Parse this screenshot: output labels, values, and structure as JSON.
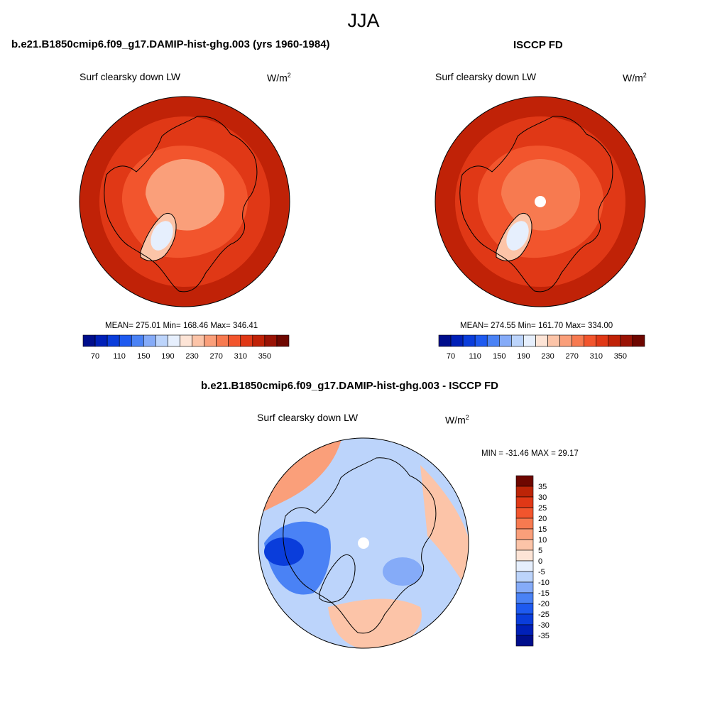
{
  "title": "JJA",
  "panels": [
    {
      "title": "b.e21.B1850cmip6.f09_g17.DAMIP-hist-ghg.003 (yrs 1960-1984)",
      "variable": "Surf clearsky down LW",
      "units_base": "W/m",
      "units_exp": "2",
      "stats": "MEAN= 275.01  Min= 168.46  Max= 346.41",
      "regions": [
        {
          "name": "lower-latitude ring",
          "value": 320
        },
        {
          "name": "middle ring",
          "value": 300
        },
        {
          "name": "inner ring",
          "value": 270
        },
        {
          "name": "arctic ocean core",
          "value": 240
        },
        {
          "name": "greenland outer",
          "value": 210
        },
        {
          "name": "greenland interior",
          "value": 170
        }
      ]
    },
    {
      "title": "ISCCP FD",
      "variable": "Surf clearsky down LW",
      "units_base": "W/m",
      "units_exp": "2",
      "stats": "MEAN= 274.55  Min= 161.70  Max= 334.00",
      "regions": [
        {
          "name": "lower-latitude ring",
          "value": 320
        },
        {
          "name": "middle ring",
          "value": 300
        },
        {
          "name": "inner ring",
          "value": 270
        },
        {
          "name": "arctic ocean core",
          "value": 250
        },
        {
          "name": "greenland outer",
          "value": 210
        },
        {
          "name": "greenland interior",
          "value": 170
        }
      ]
    },
    {
      "title": "b.e21.B1850cmip6.f09_g17.DAMIP-hist-ghg.003 - ISCCP FD",
      "variable": "Surf clearsky down LW",
      "units_base": "W/m",
      "units_exp": "2",
      "stats": "MIN = -31.46 MAX =  29.17",
      "regions": [
        {
          "name": "background",
          "value": -5
        },
        {
          "name": "north atlantic",
          "value": 12
        },
        {
          "name": "east pacific",
          "value": 10
        },
        {
          "name": "north america",
          "value": -15
        },
        {
          "name": "hudson region",
          "value": -25
        },
        {
          "name": "europe",
          "value": 8
        },
        {
          "name": "siberia",
          "value": -10
        }
      ]
    }
  ],
  "colorbar_abs": {
    "labels": [
      "70",
      "110",
      "150",
      "190",
      "230",
      "270",
      "310",
      "350"
    ],
    "colors": [
      "#000e8c",
      "#0020b8",
      "#0a3ddb",
      "#1e5af0",
      "#4a82f5",
      "#85abf8",
      "#bcd4fb",
      "#e6effd",
      "#fde4d6",
      "#fcc4a8",
      "#fa9f7a",
      "#f77a50",
      "#f2552d",
      "#e03816",
      "#c02207",
      "#9a1305",
      "#6e0700"
    ]
  },
  "colorbar_diff": {
    "labels": [
      "35",
      "30",
      "25",
      "20",
      "15",
      "10",
      "5",
      "0",
      "-5",
      "-10",
      "-15",
      "-20",
      "-25",
      "-30",
      "-35"
    ],
    "colors": [
      "#6e0700",
      "#bc2407",
      "#e03816",
      "#f2552d",
      "#f77a50",
      "#fa9f7a",
      "#fcc4a8",
      "#fde4d6",
      "#e6effd",
      "#bcd4fb",
      "#85abf8",
      "#4a82f5",
      "#1e5af0",
      "#0a3ddb",
      "#0020b8",
      "#000e8c"
    ]
  }
}
